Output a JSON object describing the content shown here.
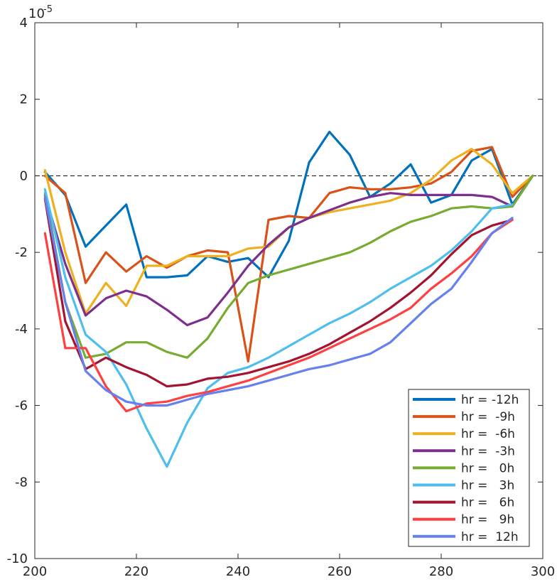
{
  "chart_data": {
    "type": "line",
    "title": "",
    "xlabel": "",
    "ylabel": "",
    "y_exponent_label": "10",
    "y_exponent_power": "-5",
    "xlim": [
      200,
      300
    ],
    "ylim": [
      -10,
      4
    ],
    "x_ticks": [
      "200",
      "220",
      "240",
      "260",
      "280",
      "300"
    ],
    "y_ticks": [
      "-10",
      "-8",
      "-6",
      "-4",
      "-2",
      "0",
      "2",
      "4"
    ],
    "x_tick_values": [
      200,
      220,
      240,
      260,
      280,
      300
    ],
    "y_tick_values": [
      -10,
      -8,
      -6,
      -4,
      -2,
      0,
      2,
      4
    ],
    "grid": false,
    "zero_line": true,
    "legend_position": "bottom-right",
    "series": [
      {
        "name": "hr = -12h",
        "color": "#0072BD",
        "x": [
          202,
          206,
          210,
          214,
          218,
          222,
          226,
          230,
          234,
          238,
          242,
          246,
          250,
          254,
          258,
          262,
          266,
          270,
          274,
          278,
          282,
          286,
          290,
          294,
          298
        ],
        "y": [
          0.1,
          -0.5,
          -1.85,
          -1.3,
          -0.75,
          -2.65,
          -2.65,
          -2.6,
          -2.1,
          -2.25,
          -2.15,
          -2.65,
          -1.7,
          0.35,
          1.15,
          0.55,
          -0.55,
          -0.2,
          0.3,
          -0.7,
          -0.5,
          0.4,
          0.7,
          -0.75,
          0.0
        ]
      },
      {
        "name": "hr =  -9h",
        "color": "#D95319",
        "x": [
          202,
          206,
          210,
          214,
          218,
          222,
          226,
          230,
          234,
          238,
          242,
          246,
          250,
          254,
          258,
          262,
          266,
          270,
          274,
          278,
          282,
          286,
          290,
          294,
          298
        ],
        "y": [
          0.0,
          -0.45,
          -2.8,
          -2.0,
          -2.5,
          -2.1,
          -2.4,
          -2.1,
          -1.95,
          -2.0,
          -4.85,
          -1.15,
          -1.05,
          -1.1,
          -0.45,
          -0.3,
          -0.35,
          -0.35,
          -0.3,
          -0.2,
          0.1,
          0.65,
          0.75,
          -0.55,
          0.0
        ]
      },
      {
        "name": "hr =  -6h",
        "color": "#EDB120",
        "x": [
          202,
          206,
          210,
          214,
          218,
          222,
          226,
          230,
          234,
          238,
          242,
          246,
          250,
          254,
          258,
          262,
          266,
          270,
          274,
          278,
          282,
          286,
          290,
          294,
          298
        ],
        "y": [
          0.15,
          -2.0,
          -3.6,
          -2.8,
          -3.4,
          -2.35,
          -2.35,
          -2.1,
          -2.1,
          -2.1,
          -1.9,
          -1.85,
          -1.35,
          -1.1,
          -0.95,
          -0.85,
          -0.75,
          -0.65,
          -0.45,
          -0.1,
          0.4,
          0.7,
          0.3,
          -0.45,
          0.0
        ]
      },
      {
        "name": "hr =  -3h",
        "color": "#7E2F8E",
        "x": [
          202,
          206,
          210,
          214,
          218,
          222,
          226,
          230,
          234,
          238,
          242,
          246,
          250,
          254,
          258,
          262,
          266,
          270,
          274,
          278,
          282,
          286,
          290,
          294,
          298
        ],
        "y": [
          -0.5,
          -2.3,
          -3.65,
          -3.2,
          -3.0,
          -3.15,
          -3.5,
          -3.9,
          -3.7,
          -3.05,
          -2.35,
          -1.8,
          -1.35,
          -1.1,
          -0.9,
          -0.7,
          -0.55,
          -0.45,
          -0.5,
          -0.5,
          -0.5,
          -0.5,
          -0.55,
          -0.8,
          0.0
        ]
      },
      {
        "name": "hr =   0h",
        "color": "#77AC30",
        "x": [
          202,
          206,
          210,
          214,
          218,
          222,
          226,
          230,
          234,
          238,
          242,
          246,
          250,
          254,
          258,
          262,
          266,
          270,
          274,
          278,
          282,
          286,
          290,
          294,
          298
        ],
        "y": [
          -0.45,
          -3.3,
          -4.75,
          -4.65,
          -4.35,
          -4.35,
          -4.6,
          -4.75,
          -4.25,
          -3.45,
          -2.8,
          -2.6,
          -2.45,
          -2.3,
          -2.15,
          -2.0,
          -1.75,
          -1.45,
          -1.2,
          -1.05,
          -0.85,
          -0.8,
          -0.85,
          -0.8,
          0.0
        ]
      },
      {
        "name": "hr =   3h",
        "color": "#4DBEEE",
        "x": [
          202,
          206,
          210,
          214,
          218,
          222,
          226,
          230,
          234,
          238,
          242,
          246,
          250,
          254,
          258,
          262,
          266,
          270,
          274,
          278,
          282,
          286,
          290,
          294
        ],
        "y": [
          -0.35,
          -2.65,
          -4.15,
          -4.6,
          -5.45,
          -6.6,
          -7.6,
          -6.45,
          -5.55,
          -5.15,
          -5.0,
          -4.75,
          -4.45,
          -4.15,
          -3.85,
          -3.6,
          -3.3,
          -2.95,
          -2.65,
          -2.35,
          -1.95,
          -1.45,
          -0.85,
          -0.75
        ]
      },
      {
        "name": "hr =   6h",
        "color": "#A2142F",
        "x": [
          202,
          206,
          210,
          214,
          218,
          222,
          226,
          230,
          234,
          238,
          242,
          246,
          250,
          254,
          258,
          262,
          266,
          270,
          274,
          278,
          282,
          286,
          290,
          294
        ],
        "y": [
          -0.6,
          -3.8,
          -5.05,
          -4.75,
          -5.0,
          -5.2,
          -5.5,
          -5.45,
          -5.3,
          -5.25,
          -5.15,
          -5.0,
          -4.85,
          -4.65,
          -4.4,
          -4.1,
          -3.8,
          -3.45,
          -3.05,
          -2.6,
          -2.05,
          -1.55,
          -1.3,
          -1.15
        ]
      },
      {
        "name": "hr =   9h",
        "color": "#FF4040",
        "x": [
          202,
          206,
          210,
          214,
          218,
          222,
          226,
          230,
          234,
          238,
          242,
          246,
          250,
          254,
          258,
          262,
          266,
          270,
          274,
          278,
          282,
          286,
          290,
          294
        ],
        "y": [
          -1.5,
          -4.5,
          -4.5,
          -5.5,
          -6.15,
          -5.95,
          -5.9,
          -5.75,
          -5.65,
          -5.5,
          -5.35,
          -5.15,
          -4.95,
          -4.75,
          -4.5,
          -4.25,
          -4.0,
          -3.75,
          -3.45,
          -2.95,
          -2.55,
          -2.1,
          -1.5,
          -1.15
        ]
      },
      {
        "name": "hr =  12h",
        "color": "#6680EE",
        "x": [
          202,
          206,
          210,
          214,
          218,
          222,
          226,
          230,
          234,
          238,
          242,
          246,
          250,
          254,
          258,
          262,
          266,
          270,
          274,
          278,
          282,
          286,
          290,
          294
        ],
        "y": [
          -0.55,
          -3.3,
          -5.1,
          -5.6,
          -5.9,
          -6.0,
          -6.0,
          -5.85,
          -5.7,
          -5.6,
          -5.5,
          -5.35,
          -5.2,
          -5.05,
          -4.95,
          -4.8,
          -4.65,
          -4.35,
          -3.85,
          -3.35,
          -2.95,
          -2.25,
          -1.5,
          -1.1
        ]
      }
    ]
  }
}
